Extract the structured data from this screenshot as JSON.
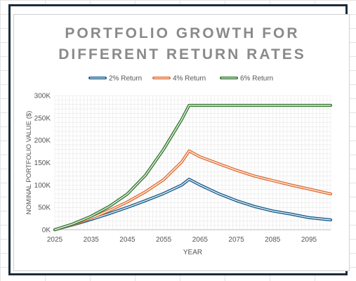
{
  "colors": {
    "series_2pct": "#1f6391",
    "series_4pct": "#e2733a",
    "series_6pct": "#3a7d35",
    "title": "#8a8a8a",
    "axis_text": "#555555",
    "grid": "#e6e6e6",
    "frame_border": "#1b2c3a"
  },
  "chart_data": {
    "type": "line",
    "title_lines": [
      "PORTFOLIO GROWTH FOR",
      "DIFFERENT RETURN RATES"
    ],
    "xlabel": "YEAR",
    "ylabel": "NOMINAL PORTFOLIO VALUE ($)",
    "xlim": [
      2025,
      2101
    ],
    "ylim": [
      0,
      300000
    ],
    "x_ticks": [
      2025,
      2035,
      2045,
      2055,
      2065,
      2075,
      2085,
      2095
    ],
    "x_tick_labels": [
      "2025",
      "2035",
      "2045",
      "2055",
      "2065",
      "2075",
      "2085",
      "2095"
    ],
    "y_ticks": [
      0,
      50000,
      100000,
      150000,
      200000,
      250000,
      300000
    ],
    "y_tick_labels": [
      "0K",
      "50K",
      "100K",
      "150K",
      "200K",
      "250K",
      "300K"
    ],
    "legend_position": "top",
    "grid": true,
    "series": [
      {
        "name": "2% Return",
        "color_key": "series_2pct",
        "x": [
          2025,
          2030,
          2035,
          2040,
          2045,
          2050,
          2055,
          2060,
          2062,
          2065,
          2070,
          2075,
          2080,
          2085,
          2090,
          2095,
          2101
        ],
        "y": [
          0,
          11000,
          23000,
          36000,
          50000,
          65000,
          81000,
          100000,
          113000,
          100000,
          81000,
          65000,
          52000,
          42000,
          35000,
          27000,
          22000
        ]
      },
      {
        "name": "4% Return",
        "color_key": "series_4pct",
        "x": [
          2025,
          2030,
          2035,
          2040,
          2045,
          2050,
          2055,
          2060,
          2062,
          2065,
          2070,
          2075,
          2080,
          2085,
          2090,
          2095,
          2101
        ],
        "y": [
          0,
          12000,
          26000,
          43000,
          62000,
          85000,
          112000,
          152000,
          176000,
          163000,
          148000,
          133000,
          120000,
          110000,
          100000,
          91000,
          80000
        ]
      },
      {
        "name": "6% Return",
        "color_key": "series_6pct",
        "x": [
          2025,
          2030,
          2035,
          2040,
          2045,
          2050,
          2055,
          2060,
          2062,
          2065,
          2070,
          2075,
          2080,
          2085,
          2090,
          2095,
          2101
        ],
        "y": [
          0,
          13000,
          30000,
          52000,
          80000,
          122000,
          180000,
          247000,
          278000,
          278000,
          278000,
          278000,
          278000,
          278000,
          278000,
          278000,
          278000
        ]
      }
    ]
  }
}
